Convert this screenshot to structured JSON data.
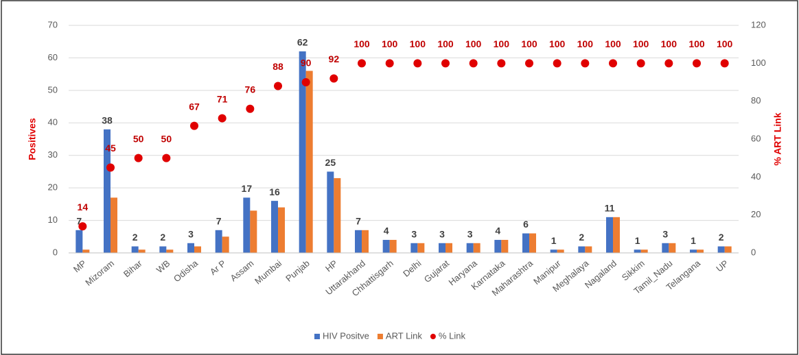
{
  "chart_data": {
    "type": "bar",
    "categories": [
      "MP",
      "Mizoram",
      "Bihar",
      "WB",
      "Odisha",
      "Ar P",
      "Assam",
      "Mumbai",
      "Punjab",
      "HP",
      "Uttarakhand",
      "Chhattisgarh",
      "Delhi",
      "Gujarat",
      "Haryana",
      "Karnataka",
      "Maharashtra",
      "Manipur",
      "Meghalaya",
      "Nagaland",
      "Sikkim",
      "Tamil_Nadu",
      "Telangana",
      "UP"
    ],
    "series": [
      {
        "name": "HIV Positve",
        "color": "#4472c4",
        "type": "bar",
        "values": [
          7,
          38,
          2,
          2,
          3,
          7,
          17,
          16,
          62,
          25,
          7,
          4,
          3,
          3,
          3,
          4,
          6,
          1,
          2,
          11,
          1,
          3,
          1,
          2
        ]
      },
      {
        "name": "ART Link",
        "color": "#ed7d31",
        "type": "bar",
        "values": [
          1,
          17,
          1,
          1,
          2,
          5,
          13,
          14,
          56,
          23,
          7,
          4,
          3,
          3,
          3,
          4,
          6,
          1,
          2,
          11,
          1,
          3,
          1,
          2
        ]
      },
      {
        "name": "% Link",
        "color": "#e00000",
        "type": "scatter",
        "axis": "y2",
        "values": [
          14,
          45,
          50,
          50,
          67,
          71,
          76,
          88,
          90,
          92,
          100,
          100,
          100,
          100,
          100,
          100,
          100,
          100,
          100,
          100,
          100,
          100,
          100,
          100
        ]
      }
    ],
    "ylabel": "Positives",
    "y2label": "% ART Link",
    "ylim": [
      0,
      70
    ],
    "yticks": [
      0,
      10,
      20,
      30,
      40,
      50,
      60,
      70
    ],
    "y2lim": [
      0,
      120
    ],
    "y2ticks": [
      0,
      20,
      40,
      60,
      80,
      100,
      120
    ],
    "grid": true,
    "legend": "bottom"
  }
}
